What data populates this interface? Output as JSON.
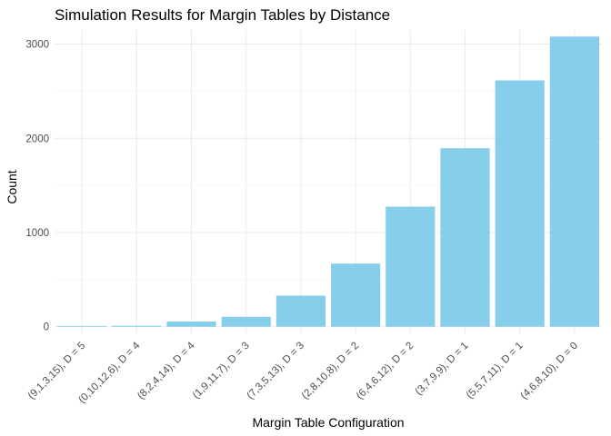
{
  "chart_data": {
    "type": "bar",
    "title": "Simulation Results for Margin Tables by Distance",
    "xlabel": "Margin Table Configuration",
    "ylabel": "Count",
    "categories": [
      "(9,1,3,15), D = 5",
      "(0,10,12,6), D = 4",
      "(8,2,4,14), D = 4",
      "(1,9,11,7), D = 3",
      "(7,3,5,13), D = 3",
      "(2,8,10,8), D = 2",
      "(6,4,6,12), D = 2",
      "(3,7,9,9), D = 1",
      "(5,5,7,11), D = 1",
      "(4,6,8,10), D = 0"
    ],
    "values": [
      8,
      10,
      55,
      105,
      330,
      670,
      1275,
      1895,
      2615,
      3080
    ],
    "yticks": [
      0,
      1000,
      2000,
      3000
    ],
    "ylim": [
      -80,
      3150
    ],
    "grid": true,
    "bar_color": "#87ceeb"
  }
}
